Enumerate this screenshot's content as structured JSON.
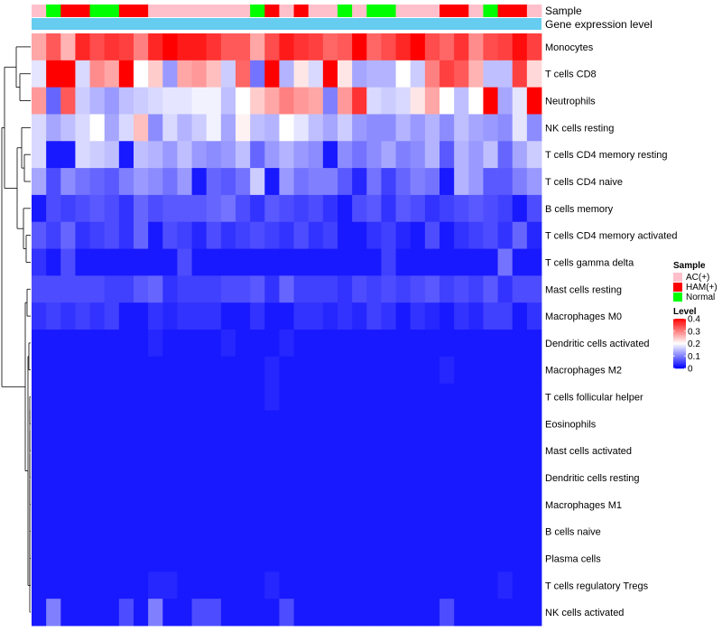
{
  "chart_data": {
    "type": "heatmap",
    "title": "",
    "annotation_tracks": [
      {
        "label": "Sample",
        "type": "categorical"
      },
      {
        "label": "Gene expression level",
        "type": "continuous",
        "color": "#66ccf0"
      }
    ],
    "sample_legend": {
      "title": "Sample",
      "entries": [
        {
          "label": "AC(+)",
          "color": "#ffc0cb"
        },
        {
          "label": "HAM(+)",
          "color": "#ff0000"
        },
        {
          "label": "Normal",
          "color": "#00ff00"
        }
      ]
    },
    "level_legend": {
      "title": "Level",
      "ticks": [
        "0.4",
        "0.3",
        "0.2",
        "0.1",
        "0"
      ],
      "range": [
        0,
        0.4
      ],
      "low_color": "#0000ff",
      "mid_color": "#ffffff",
      "high_color": "#ff0000"
    },
    "samples": [
      "AC(+)",
      "Normal",
      "HAM(+)",
      "HAM(+)",
      "Normal",
      "Normal",
      "HAM(+)",
      "HAM(+)",
      "AC(+)",
      "AC(+)",
      "AC(+)",
      "AC(+)",
      "AC(+)",
      "AC(+)",
      "AC(+)",
      "Normal",
      "HAM(+)",
      "AC(+)",
      "HAM(+)",
      "AC(+)",
      "AC(+)",
      "Normal",
      "AC(+)",
      "Normal",
      "Normal",
      "AC(+)",
      "AC(+)",
      "AC(+)",
      "HAM(+)",
      "HAM(+)",
      "AC(+)",
      "Normal",
      "HAM(+)",
      "HAM(+)",
      "AC(+)"
    ],
    "rows": [
      "Monocytes",
      "T cells CD8",
      "Neutrophils",
      "NK cells resting",
      "T cells CD4 memory resting",
      "T cells CD4 naive",
      "B cells memory",
      "T cells CD4 memory activated",
      "T cells gamma delta",
      "Mast cells resting",
      "Macrophages M0",
      "Dendritic cells activated",
      "Macrophages M2",
      "T cells follicular helper",
      "Eosinophils",
      "Mast cells activated",
      "Dendritic cells resting",
      "Macrophages M1",
      "B cells naive",
      "Plasma cells",
      "T cells regulatory  Tregs",
      "NK cells activated"
    ],
    "values": [
      [
        0.27,
        0.33,
        0.26,
        0.37,
        0.34,
        0.36,
        0.35,
        0.3,
        0.37,
        0.4,
        0.38,
        0.38,
        0.36,
        0.33,
        0.33,
        0.27,
        0.34,
        0.38,
        0.36,
        0.35,
        0.32,
        0.33,
        0.4,
        0.32,
        0.34,
        0.37,
        0.4,
        0.34,
        0.32,
        0.36,
        0.29,
        0.34,
        0.35,
        0.39,
        0.35
      ],
      [
        0.18,
        0.4,
        0.4,
        0.17,
        0.29,
        0.27,
        0.4,
        0.2,
        0.24,
        0.12,
        0.27,
        0.28,
        0.25,
        0.16,
        0.32,
        0.09,
        0.4,
        0.14,
        0.22,
        0.17,
        0.4,
        0.22,
        0.13,
        0.14,
        0.14,
        0.2,
        0.16,
        0.3,
        0.35,
        0.33,
        0.26,
        0.15,
        0.15,
        0.35,
        0.23
      ],
      [
        0.28,
        0.08,
        0.33,
        0.16,
        0.14,
        0.12,
        0.15,
        0.16,
        0.17,
        0.18,
        0.18,
        0.19,
        0.19,
        0.15,
        0.2,
        0.24,
        0.27,
        0.3,
        0.28,
        0.27,
        0.1,
        0.28,
        0.36,
        0.17,
        0.16,
        0.17,
        0.22,
        0.27,
        0.2,
        0.15,
        0.2,
        0.4,
        0.13,
        0.18,
        0.4
      ],
      [
        0.17,
        0.13,
        0.15,
        0.17,
        0.2,
        0.13,
        0.17,
        0.25,
        0.11,
        0.17,
        0.14,
        0.16,
        0.19,
        0.13,
        0.21,
        0.15,
        0.14,
        0.2,
        0.18,
        0.15,
        0.13,
        0.16,
        0.12,
        0.11,
        0.11,
        0.14,
        0.12,
        0.14,
        0.11,
        0.15,
        0.13,
        0.12,
        0.11,
        0.18,
        0.11
      ],
      [
        0.17,
        0.02,
        0.02,
        0.17,
        0.16,
        0.15,
        0.02,
        0.15,
        0.14,
        0.12,
        0.15,
        0.12,
        0.11,
        0.12,
        0.15,
        0.08,
        0.12,
        0.14,
        0.12,
        0.11,
        0.02,
        0.11,
        0.09,
        0.11,
        0.13,
        0.1,
        0.11,
        0.14,
        0.07,
        0.14,
        0.12,
        0.15,
        0.08,
        0.13,
        0.16
      ],
      [
        0.13,
        0.06,
        0.11,
        0.09,
        0.08,
        0.07,
        0.1,
        0.12,
        0.11,
        0.09,
        0.12,
        0.02,
        0.08,
        0.07,
        0.09,
        0.16,
        0.02,
        0.12,
        0.09,
        0.1,
        0.1,
        0.07,
        0.03,
        0.09,
        0.05,
        0.08,
        0.1,
        0.09,
        0.02,
        0.14,
        0.12,
        0.07,
        0.07,
        0.1,
        0.12
      ],
      [
        0.02,
        0.06,
        0.05,
        0.06,
        0.07,
        0.06,
        0.04,
        0.08,
        0.06,
        0.07,
        0.07,
        0.07,
        0.08,
        0.09,
        0.06,
        0.04,
        0.07,
        0.06,
        0.05,
        0.06,
        0.04,
        0.02,
        0.06,
        0.07,
        0.04,
        0.07,
        0.06,
        0.04,
        0.05,
        0.06,
        0.07,
        0.06,
        0.05,
        0.02,
        0.06
      ],
      [
        0.07,
        0.05,
        0.08,
        0.04,
        0.05,
        0.06,
        0.04,
        0.08,
        0.02,
        0.06,
        0.05,
        0.03,
        0.06,
        0.04,
        0.05,
        0.06,
        0.05,
        0.04,
        0.06,
        0.04,
        0.05,
        0.02,
        0.02,
        0.04,
        0.05,
        0.03,
        0.02,
        0.06,
        0.02,
        0.04,
        0.05,
        0.06,
        0.04,
        0.08,
        0.03
      ],
      [
        0.04,
        0.02,
        0.06,
        0.02,
        0.02,
        0.02,
        0.02,
        0.02,
        0.02,
        0.02,
        0.06,
        0.02,
        0.02,
        0.02,
        0.02,
        0.02,
        0.02,
        0.02,
        0.02,
        0.02,
        0.02,
        0.02,
        0.02,
        0.02,
        0.05,
        0.02,
        0.02,
        0.02,
        0.02,
        0.02,
        0.02,
        0.02,
        0.09,
        0.02,
        0.02
      ],
      [
        0.06,
        0.06,
        0.06,
        0.06,
        0.06,
        0.05,
        0.05,
        0.07,
        0.08,
        0.04,
        0.05,
        0.05,
        0.05,
        0.06,
        0.06,
        0.07,
        0.04,
        0.08,
        0.05,
        0.05,
        0.05,
        0.04,
        0.06,
        0.05,
        0.06,
        0.05,
        0.06,
        0.07,
        0.05,
        0.06,
        0.05,
        0.07,
        0.04,
        0.06,
        0.06
      ],
      [
        0.04,
        0.05,
        0.04,
        0.05,
        0.04,
        0.05,
        0.02,
        0.02,
        0.04,
        0.03,
        0.04,
        0.04,
        0.04,
        0.02,
        0.02,
        0.04,
        0.02,
        0.02,
        0.04,
        0.04,
        0.03,
        0.04,
        0.03,
        0.05,
        0.04,
        0.02,
        0.04,
        0.03,
        0.02,
        0.04,
        0.03,
        0.05,
        0.05,
        0.02,
        0.04
      ],
      [
        0.02,
        0.02,
        0.02,
        0.02,
        0.02,
        0.02,
        0.02,
        0.02,
        0.03,
        0.02,
        0.02,
        0.02,
        0.02,
        0.03,
        0.02,
        0.02,
        0.02,
        0.03,
        0.02,
        0.02,
        0.02,
        0.02,
        0.02,
        0.02,
        0.02,
        0.02,
        0.02,
        0.02,
        0.02,
        0.02,
        0.02,
        0.02,
        0.02,
        0.02,
        0.02
      ],
      [
        0.02,
        0.02,
        0.02,
        0.02,
        0.02,
        0.02,
        0.02,
        0.02,
        0.02,
        0.02,
        0.02,
        0.02,
        0.02,
        0.02,
        0.02,
        0.02,
        0.03,
        0.02,
        0.02,
        0.02,
        0.02,
        0.02,
        0.02,
        0.02,
        0.02,
        0.02,
        0.02,
        0.02,
        0.03,
        0.02,
        0.02,
        0.02,
        0.02,
        0.02,
        0.02
      ],
      [
        0.02,
        0.02,
        0.02,
        0.02,
        0.02,
        0.02,
        0.02,
        0.02,
        0.02,
        0.02,
        0.02,
        0.02,
        0.02,
        0.02,
        0.02,
        0.02,
        0.03,
        0.02,
        0.02,
        0.02,
        0.02,
        0.02,
        0.02,
        0.02,
        0.02,
        0.02,
        0.02,
        0.02,
        0.02,
        0.02,
        0.02,
        0.02,
        0.02,
        0.02,
        0.02
      ],
      [
        0.02,
        0.02,
        0.02,
        0.02,
        0.02,
        0.02,
        0.02,
        0.02,
        0.02,
        0.02,
        0.02,
        0.02,
        0.02,
        0.02,
        0.02,
        0.02,
        0.02,
        0.02,
        0.02,
        0.02,
        0.02,
        0.02,
        0.02,
        0.02,
        0.02,
        0.02,
        0.02,
        0.02,
        0.02,
        0.02,
        0.02,
        0.02,
        0.02,
        0.02,
        0.02
      ],
      [
        0.02,
        0.02,
        0.02,
        0.02,
        0.02,
        0.02,
        0.02,
        0.02,
        0.02,
        0.02,
        0.02,
        0.02,
        0.02,
        0.02,
        0.02,
        0.02,
        0.02,
        0.02,
        0.02,
        0.02,
        0.02,
        0.02,
        0.02,
        0.02,
        0.02,
        0.02,
        0.02,
        0.02,
        0.02,
        0.02,
        0.02,
        0.02,
        0.02,
        0.02,
        0.02
      ],
      [
        0.02,
        0.02,
        0.02,
        0.02,
        0.02,
        0.02,
        0.02,
        0.02,
        0.02,
        0.02,
        0.02,
        0.02,
        0.02,
        0.02,
        0.02,
        0.02,
        0.02,
        0.02,
        0.02,
        0.02,
        0.02,
        0.02,
        0.02,
        0.02,
        0.02,
        0.02,
        0.02,
        0.02,
        0.02,
        0.02,
        0.02,
        0.02,
        0.02,
        0.02,
        0.02
      ],
      [
        0.02,
        0.02,
        0.02,
        0.02,
        0.02,
        0.02,
        0.02,
        0.02,
        0.02,
        0.02,
        0.02,
        0.02,
        0.02,
        0.02,
        0.02,
        0.02,
        0.02,
        0.02,
        0.02,
        0.02,
        0.02,
        0.02,
        0.02,
        0.02,
        0.02,
        0.02,
        0.02,
        0.02,
        0.02,
        0.02,
        0.02,
        0.02,
        0.02,
        0.02,
        0.02
      ],
      [
        0.02,
        0.02,
        0.02,
        0.02,
        0.02,
        0.02,
        0.02,
        0.02,
        0.02,
        0.02,
        0.02,
        0.02,
        0.02,
        0.02,
        0.02,
        0.02,
        0.02,
        0.02,
        0.02,
        0.02,
        0.02,
        0.02,
        0.02,
        0.02,
        0.02,
        0.02,
        0.02,
        0.02,
        0.02,
        0.02,
        0.02,
        0.02,
        0.02,
        0.02,
        0.02
      ],
      [
        0.02,
        0.02,
        0.02,
        0.02,
        0.02,
        0.02,
        0.02,
        0.02,
        0.02,
        0.02,
        0.02,
        0.02,
        0.02,
        0.02,
        0.02,
        0.02,
        0.02,
        0.02,
        0.02,
        0.02,
        0.02,
        0.02,
        0.02,
        0.02,
        0.02,
        0.02,
        0.02,
        0.02,
        0.02,
        0.02,
        0.02,
        0.02,
        0.02,
        0.02,
        0.02
      ],
      [
        0.02,
        0.02,
        0.02,
        0.02,
        0.02,
        0.02,
        0.02,
        0.02,
        0.03,
        0.03,
        0.02,
        0.02,
        0.02,
        0.02,
        0.02,
        0.02,
        0.03,
        0.02,
        0.02,
        0.02,
        0.02,
        0.02,
        0.02,
        0.02,
        0.02,
        0.02,
        0.02,
        0.02,
        0.02,
        0.02,
        0.02,
        0.02,
        0.03,
        0.02,
        0.02
      ],
      [
        0.02,
        0.1,
        0.02,
        0.02,
        0.02,
        0.02,
        0.06,
        0.02,
        0.1,
        0.02,
        0.02,
        0.06,
        0.06,
        0.02,
        0.02,
        0.02,
        0.02,
        0.06,
        0.02,
        0.02,
        0.02,
        0.02,
        0.02,
        0.02,
        0.02,
        0.02,
        0.02,
        0.02,
        0.06,
        0.02,
        0.02,
        0.02,
        0.02,
        0.02,
        0.02
      ]
    ]
  }
}
